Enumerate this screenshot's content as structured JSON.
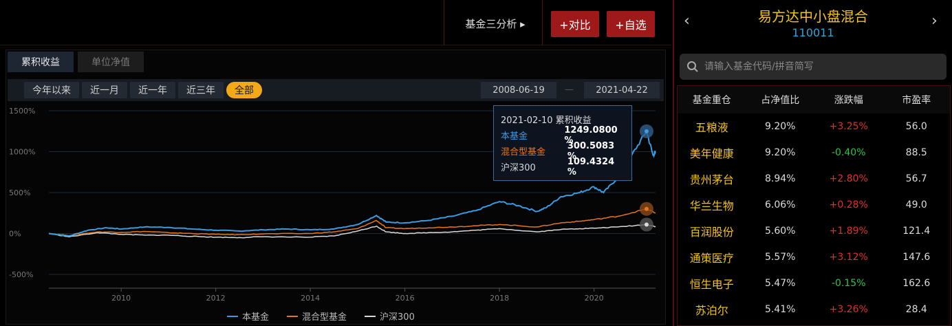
{
  "toolbar": {
    "fund_analysis_label": "基金三分析 ▸",
    "compare_label": "+对比",
    "watchlist_label": "+自选"
  },
  "chart_tabs": [
    {
      "label": "累积收益",
      "active": true
    },
    {
      "label": "单位净值",
      "active": false
    }
  ],
  "ranges": [
    {
      "label": "今年以来",
      "active": false
    },
    {
      "label": "近一月",
      "active": false
    },
    {
      "label": "近一年",
      "active": false
    },
    {
      "label": "近三年",
      "active": false
    },
    {
      "label": "全部",
      "active": true
    }
  ],
  "date_range": {
    "start": "2008-06-19",
    "end": "2021-04-22"
  },
  "tooltip": {
    "header": "2021-02-10 累积收益",
    "rows": [
      {
        "name": "本基金",
        "value": "1249.0800 %",
        "color": "#3b9be0"
      },
      {
        "name": "混合型基金",
        "value": "300.5083 %",
        "color": "#e3781f"
      },
      {
        "name": "沪深300",
        "value": "109.4324 %",
        "color": "#d9d9d9"
      }
    ]
  },
  "chart_data": {
    "type": "line",
    "ylim": [
      -500,
      1500
    ],
    "yticks": [
      "1500%",
      "1000%",
      "500%",
      "0%",
      "-500%"
    ],
    "xticks": [
      "2010",
      "2012",
      "2014",
      "2016",
      "2018",
      "2020"
    ],
    "x_range": [
      "2008-06-19",
      "2021-04-22"
    ],
    "series": [
      {
        "name": "本基金",
        "color": "#3b9be0",
        "points": [
          [
            2008.47,
            0
          ],
          [
            2008.9,
            -30
          ],
          [
            2009.3,
            40
          ],
          [
            2009.7,
            70
          ],
          [
            2010.0,
            55
          ],
          [
            2010.5,
            80
          ],
          [
            2011.0,
            75
          ],
          [
            2011.5,
            55
          ],
          [
            2012.0,
            40
          ],
          [
            2012.5,
            30
          ],
          [
            2013.0,
            45
          ],
          [
            2013.5,
            55
          ],
          [
            2014.0,
            45
          ],
          [
            2014.5,
            55
          ],
          [
            2015.0,
            110
          ],
          [
            2015.4,
            220
          ],
          [
            2015.6,
            140
          ],
          [
            2016.0,
            130
          ],
          [
            2016.5,
            160
          ],
          [
            2017.0,
            210
          ],
          [
            2017.5,
            280
          ],
          [
            2018.0,
            390
          ],
          [
            2018.4,
            340
          ],
          [
            2018.8,
            270
          ],
          [
            2019.0,
            320
          ],
          [
            2019.3,
            450
          ],
          [
            2019.7,
            500
          ],
          [
            2020.0,
            570
          ],
          [
            2020.2,
            500
          ],
          [
            2020.5,
            680
          ],
          [
            2020.8,
            960
          ],
          [
            2021.11,
            1249
          ],
          [
            2021.25,
            950
          ],
          [
            2021.3,
            1000
          ]
        ]
      },
      {
        "name": "混合型基金",
        "color": "#e3781f",
        "points": [
          [
            2008.47,
            0
          ],
          [
            2008.9,
            -25
          ],
          [
            2009.5,
            20
          ],
          [
            2010.0,
            15
          ],
          [
            2010.5,
            25
          ],
          [
            2011.0,
            10
          ],
          [
            2011.5,
            0
          ],
          [
            2012.0,
            -10
          ],
          [
            2012.5,
            -15
          ],
          [
            2013.0,
            -5
          ],
          [
            2014.0,
            0
          ],
          [
            2014.5,
            20
          ],
          [
            2015.0,
            60
          ],
          [
            2015.4,
            160
          ],
          [
            2015.6,
            70
          ],
          [
            2016.0,
            60
          ],
          [
            2016.5,
            70
          ],
          [
            2017.0,
            80
          ],
          [
            2017.5,
            95
          ],
          [
            2018.0,
            110
          ],
          [
            2018.8,
            80
          ],
          [
            2019.3,
            130
          ],
          [
            2019.7,
            150
          ],
          [
            2020.0,
            170
          ],
          [
            2020.5,
            210
          ],
          [
            2021.11,
            300
          ],
          [
            2021.3,
            250
          ]
        ]
      },
      {
        "name": "沪深300",
        "color": "#d9d9d9",
        "points": [
          [
            2008.47,
            0
          ],
          [
            2008.9,
            -40
          ],
          [
            2009.5,
            10
          ],
          [
            2010.0,
            -10
          ],
          [
            2010.5,
            -20
          ],
          [
            2011.0,
            -20
          ],
          [
            2011.5,
            -35
          ],
          [
            2012.0,
            -45
          ],
          [
            2012.5,
            -50
          ],
          [
            2013.0,
            -40
          ],
          [
            2014.0,
            -45
          ],
          [
            2014.5,
            -30
          ],
          [
            2015.0,
            30
          ],
          [
            2015.4,
            90
          ],
          [
            2015.6,
            20
          ],
          [
            2016.0,
            0
          ],
          [
            2016.5,
            10
          ],
          [
            2017.0,
            20
          ],
          [
            2017.5,
            40
          ],
          [
            2018.0,
            60
          ],
          [
            2018.8,
            20
          ],
          [
            2019.3,
            50
          ],
          [
            2019.7,
            60
          ],
          [
            2020.0,
            65
          ],
          [
            2020.5,
            80
          ],
          [
            2021.11,
            109
          ],
          [
            2021.3,
            85
          ]
        ]
      }
    ]
  },
  "fund": {
    "name": "易方达中小盘混合",
    "code": "110011",
    "search_placeholder": "请输入基金代码/拼音简写"
  },
  "holdings": {
    "headers": [
      "基金重仓",
      "占净值比",
      "涨跌幅",
      "市盈率"
    ],
    "rows": [
      {
        "stock": "五粮液",
        "ratio": "9.20%",
        "change": "+3.25%",
        "dir": "up",
        "pe": "56.0"
      },
      {
        "stock": "美年健康",
        "ratio": "9.20%",
        "change": "-0.40%",
        "dir": "down",
        "pe": "88.5"
      },
      {
        "stock": "贵州茅台",
        "ratio": "8.94%",
        "change": "+2.80%",
        "dir": "up",
        "pe": "56.7"
      },
      {
        "stock": "华兰生物",
        "ratio": "6.06%",
        "change": "+0.28%",
        "dir": "up",
        "pe": "49.0"
      },
      {
        "stock": "百润股份",
        "ratio": "5.60%",
        "change": "+1.89%",
        "dir": "up",
        "pe": "121.4"
      },
      {
        "stock": "通策医疗",
        "ratio": "5.57%",
        "change": "+3.12%",
        "dir": "up",
        "pe": "147.6"
      },
      {
        "stock": "恒生电子",
        "ratio": "5.47%",
        "change": "-0.15%",
        "dir": "down",
        "pe": "162.6"
      },
      {
        "stock": "苏泊尔",
        "ratio": "5.41%",
        "change": "+3.26%",
        "dir": "up",
        "pe": "28.4"
      }
    ]
  }
}
